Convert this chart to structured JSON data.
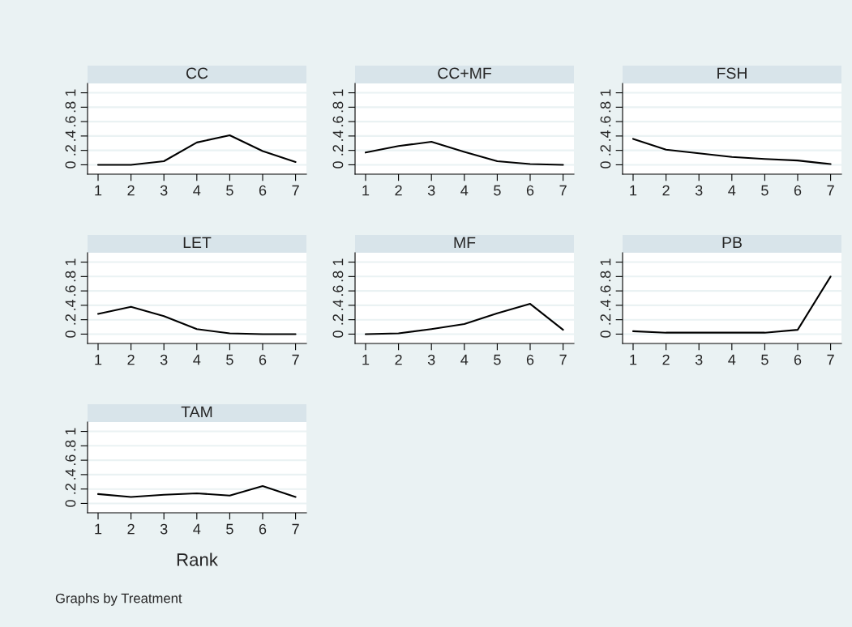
{
  "chart_data": [
    {
      "type": "line",
      "title": "CC",
      "x": [
        1,
        2,
        3,
        4,
        5,
        6,
        7
      ],
      "series": [
        {
          "color": "#000000",
          "values": [
            0,
            0,
            0.05,
            0.31,
            0.41,
            0.19,
            0.04
          ]
        }
      ],
      "xlim": [
        0.68,
        7.33
      ],
      "xticks": [
        1,
        2,
        3,
        4,
        5,
        6,
        7
      ],
      "ylim": [
        -0.13,
        1.13
      ],
      "yticks": [
        0,
        {
          "value": 0.2,
          "label": ".2"
        },
        {
          "value": 0.4,
          "label": ".4"
        },
        {
          "value": 0.6,
          "label": ".6"
        },
        {
          "value": 0.8,
          "label": ".8"
        },
        1
      ],
      "grid": "y"
    },
    {
      "type": "line",
      "title": "CC+MF",
      "x": [
        1,
        2,
        3,
        4,
        5,
        6,
        7
      ],
      "series": [
        {
          "color": "#000000",
          "values": [
            0.17,
            0.26,
            0.32,
            0.18,
            0.05,
            0.01,
            0
          ]
        }
      ],
      "xlim": [
        0.68,
        7.33
      ],
      "xticks": [
        1,
        2,
        3,
        4,
        5,
        6,
        7
      ],
      "ylim": [
        -0.13,
        1.13
      ],
      "yticks": [
        0,
        {
          "value": 0.2,
          "label": ".2"
        },
        {
          "value": 0.4,
          "label": ".4"
        },
        {
          "value": 0.6,
          "label": ".6"
        },
        {
          "value": 0.8,
          "label": ".8"
        },
        1
      ],
      "grid": "y"
    },
    {
      "type": "line",
      "title": "FSH",
      "x": [
        1,
        2,
        3,
        4,
        5,
        6,
        7
      ],
      "series": [
        {
          "color": "#000000",
          "values": [
            0.36,
            0.21,
            0.16,
            0.11,
            0.08,
            0.06,
            0.01
          ]
        }
      ],
      "xlim": [
        0.68,
        7.33
      ],
      "xticks": [
        1,
        2,
        3,
        4,
        5,
        6,
        7
      ],
      "ylim": [
        -0.13,
        1.13
      ],
      "yticks": [
        0,
        {
          "value": 0.2,
          "label": ".2"
        },
        {
          "value": 0.4,
          "label": ".4"
        },
        {
          "value": 0.6,
          "label": ".6"
        },
        {
          "value": 0.8,
          "label": ".8"
        },
        1
      ],
      "grid": "y"
    },
    {
      "type": "line",
      "title": "LET",
      "x": [
        1,
        2,
        3,
        4,
        5,
        6,
        7
      ],
      "series": [
        {
          "color": "#000000",
          "values": [
            0.28,
            0.38,
            0.25,
            0.07,
            0.01,
            0,
            0
          ]
        }
      ],
      "xlim": [
        0.68,
        7.33
      ],
      "xticks": [
        1,
        2,
        3,
        4,
        5,
        6,
        7
      ],
      "ylim": [
        -0.13,
        1.13
      ],
      "yticks": [
        0,
        {
          "value": 0.2,
          "label": ".2"
        },
        {
          "value": 0.4,
          "label": ".4"
        },
        {
          "value": 0.6,
          "label": ".6"
        },
        {
          "value": 0.8,
          "label": ".8"
        },
        1
      ],
      "grid": "y"
    },
    {
      "type": "line",
      "title": "MF",
      "x": [
        1,
        2,
        3,
        4,
        5,
        6,
        7
      ],
      "series": [
        {
          "color": "#000000",
          "values": [
            0,
            0.01,
            0.07,
            0.14,
            0.29,
            0.42,
            0.06
          ]
        }
      ],
      "xlim": [
        0.68,
        7.33
      ],
      "xticks": [
        1,
        2,
        3,
        4,
        5,
        6,
        7
      ],
      "ylim": [
        -0.13,
        1.13
      ],
      "yticks": [
        0,
        {
          "value": 0.2,
          "label": ".2"
        },
        {
          "value": 0.4,
          "label": ".4"
        },
        {
          "value": 0.6,
          "label": ".6"
        },
        {
          "value": 0.8,
          "label": ".8"
        },
        1
      ],
      "grid": "y"
    },
    {
      "type": "line",
      "title": "PB",
      "x": [
        1,
        2,
        3,
        4,
        5,
        6,
        7
      ],
      "series": [
        {
          "color": "#000000",
          "values": [
            0.04,
            0.02,
            0.02,
            0.02,
            0.02,
            0.06,
            0.8
          ]
        }
      ],
      "xlim": [
        0.68,
        7.33
      ],
      "xticks": [
        1,
        2,
        3,
        4,
        5,
        6,
        7
      ],
      "ylim": [
        -0.13,
        1.13
      ],
      "yticks": [
        0,
        {
          "value": 0.2,
          "label": ".2"
        },
        {
          "value": 0.4,
          "label": ".4"
        },
        {
          "value": 0.6,
          "label": ".6"
        },
        {
          "value": 0.8,
          "label": ".8"
        },
        1
      ],
      "grid": "y"
    },
    {
      "type": "line",
      "title": "TAM",
      "x": [
        1,
        2,
        3,
        4,
        5,
        6,
        7
      ],
      "series": [
        {
          "color": "#000000",
          "values": [
            0.13,
            0.09,
            0.12,
            0.14,
            0.11,
            0.24,
            0.09
          ]
        }
      ],
      "xlim": [
        0.68,
        7.33
      ],
      "xticks": [
        1,
        2,
        3,
        4,
        5,
        6,
        7
      ],
      "ylim": [
        -0.13,
        1.13
      ],
      "yticks": [
        0,
        {
          "value": 0.2,
          "label": ".2"
        },
        {
          "value": 0.4,
          "label": ".4"
        },
        {
          "value": 0.6,
          "label": ".6"
        },
        {
          "value": 0.8,
          "label": ".8"
        },
        1
      ],
      "grid": "y",
      "xlabel": "Rank",
      "annotations": [
        "Graphs by Treatment"
      ]
    }
  ]
}
